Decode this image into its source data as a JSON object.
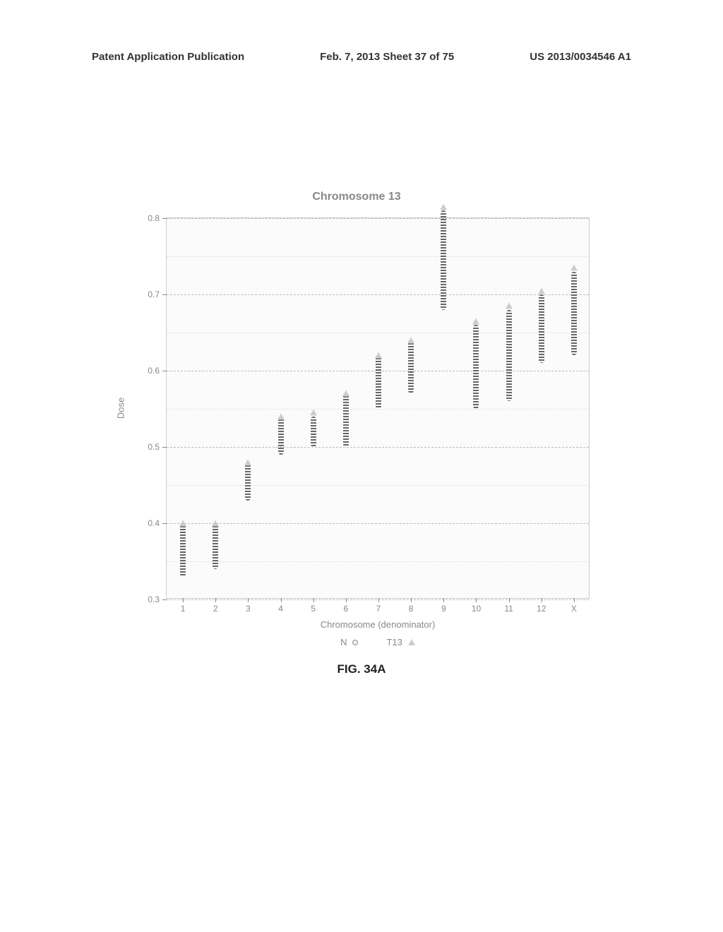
{
  "header": {
    "left": "Patent Application Publication",
    "center": "Feb. 7, 2013  Sheet 37 of 75",
    "right": "US 2013/0034546 A1"
  },
  "chart": {
    "type": "scatter-strip",
    "title": "Chromosome 13",
    "ylabel": "Dose",
    "xlabel": "Chromosome (denominator)",
    "ylim": [
      0.3,
      0.8
    ],
    "yticks": [
      0.3,
      0.4,
      0.5,
      0.6,
      0.7,
      0.8
    ],
    "xcats": [
      "1",
      "2",
      "3",
      "4",
      "5",
      "6",
      "7",
      "8",
      "9",
      "10",
      "11",
      "12",
      "X"
    ],
    "background_color": "#fbfbfb",
    "grid_color": "#bbbbbb",
    "minor_grid_color": "#dddddd",
    "marker_color_n": "#666666",
    "marker_color_t13": "#cccccc",
    "legend": {
      "n_label": "N",
      "t13_label": "T13"
    },
    "series_n": [
      {
        "cat": "1",
        "low": 0.33,
        "high": 0.4
      },
      {
        "cat": "2",
        "low": 0.34,
        "high": 0.4
      },
      {
        "cat": "3",
        "low": 0.43,
        "high": 0.48
      },
      {
        "cat": "4",
        "low": 0.49,
        "high": 0.54
      },
      {
        "cat": "5",
        "low": 0.5,
        "high": 0.54
      },
      {
        "cat": "6",
        "low": 0.5,
        "high": 0.57
      },
      {
        "cat": "7",
        "low": 0.55,
        "high": 0.62
      },
      {
        "cat": "8",
        "low": 0.57,
        "high": 0.64
      },
      {
        "cat": "9",
        "low": 0.68,
        "high": 0.81
      },
      {
        "cat": "10",
        "low": 0.55,
        "high": 0.66
      },
      {
        "cat": "11",
        "low": 0.56,
        "high": 0.68
      },
      {
        "cat": "12",
        "low": 0.61,
        "high": 0.7
      },
      {
        "cat": "X",
        "low": 0.62,
        "high": 0.73
      }
    ],
    "series_t13": [
      {
        "cat": "1",
        "y": 0.4
      },
      {
        "cat": "2",
        "y": 0.4
      },
      {
        "cat": "3",
        "y": 0.48
      },
      {
        "cat": "4",
        "y": 0.54
      },
      {
        "cat": "5",
        "y": 0.545
      },
      {
        "cat": "6",
        "y": 0.57
      },
      {
        "cat": "7",
        "y": 0.62
      },
      {
        "cat": "8",
        "y": 0.64
      },
      {
        "cat": "9",
        "y": 0.815
      },
      {
        "cat": "10",
        "y": 0.665
      },
      {
        "cat": "11",
        "y": 0.685
      },
      {
        "cat": "12",
        "y": 0.705
      },
      {
        "cat": "X",
        "y": 0.735
      }
    ]
  },
  "figure_caption": "FIG. 34A"
}
